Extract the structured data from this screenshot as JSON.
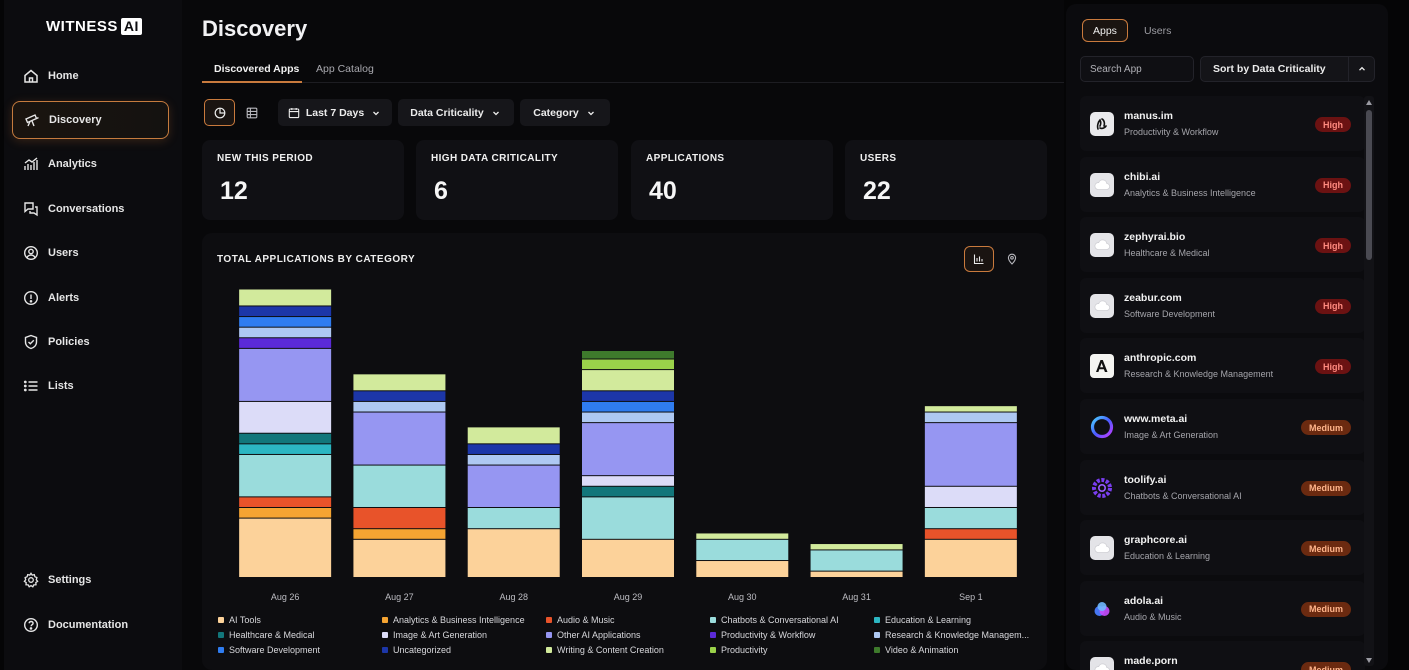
{
  "brand": {
    "name": "WITNESS",
    "mark": "AI"
  },
  "sidebar": {
    "items": [
      {
        "label": "Home",
        "icon": "home-icon"
      },
      {
        "label": "Discovery",
        "icon": "telescope-icon",
        "active": true
      },
      {
        "label": "Analytics",
        "icon": "analytics-icon"
      },
      {
        "label": "Conversations",
        "icon": "conversations-icon"
      },
      {
        "label": "Users",
        "icon": "user-circle-icon"
      },
      {
        "label": "Alerts",
        "icon": "alert-icon"
      },
      {
        "label": "Policies",
        "icon": "shield-icon"
      },
      {
        "label": "Lists",
        "icon": "list-icon"
      }
    ],
    "bottom_items": [
      {
        "label": "Settings",
        "icon": "gear-icon"
      },
      {
        "label": "Documentation",
        "icon": "help-icon"
      }
    ]
  },
  "main": {
    "title": "Discovery",
    "tabs": [
      {
        "label": "Discovered Apps",
        "active": true
      },
      {
        "label": "App Catalog"
      }
    ],
    "toolbar": {
      "view_chart_icon": "chart-view-icon",
      "view_table_icon": "table-view-icon",
      "date_range": "Last 7 Days",
      "filter_criticality": "Data Criticality",
      "filter_category": "Category"
    },
    "stats": [
      {
        "label": "NEW THIS PERIOD",
        "value": "12"
      },
      {
        "label": "HIGH DATA CRITICALITY",
        "value": "6"
      },
      {
        "label": "APPLICATIONS",
        "value": "40"
      },
      {
        "label": "USERS",
        "value": "22"
      }
    ]
  },
  "chart_data": {
    "type": "bar",
    "stacked": true,
    "title": "TOTAL APPLICATIONS BY CATEGORY",
    "categories": [
      "Aug 26",
      "Aug 27",
      "Aug 28",
      "Aug 29",
      "Aug 30",
      "Aug 31",
      "Sep 1"
    ],
    "series": [
      {
        "name": "AI Tools",
        "color": "#fcd29a",
        "values": [
          5.6,
          3.6,
          4.6,
          3.6,
          1.6,
          0.6,
          3.6
        ]
      },
      {
        "name": "Analytics & Business Intelligence",
        "color": "#f5a432",
        "values": [
          1,
          1,
          0,
          0,
          0,
          0,
          0
        ]
      },
      {
        "name": "Audio & Music",
        "color": "#e8532a",
        "values": [
          1,
          2,
          0,
          0,
          0,
          0,
          1
        ]
      },
      {
        "name": "Chatbots & Conversational AI",
        "color": "#9adcdc",
        "values": [
          4,
          4,
          2,
          4,
          2,
          2,
          2
        ]
      },
      {
        "name": "Education & Learning",
        "color": "#2cb6c2",
        "values": [
          1,
          0,
          0,
          0,
          0,
          0,
          0
        ]
      },
      {
        "name": "Healthcare & Medical",
        "color": "#12767a",
        "values": [
          1,
          0,
          0,
          1,
          0,
          0,
          0
        ]
      },
      {
        "name": "Image & Art Generation",
        "color": "#dcdcf8",
        "values": [
          3,
          0,
          0,
          1,
          0,
          0,
          2
        ]
      },
      {
        "name": "Other AI Applications",
        "color": "#9696f2",
        "values": [
          5,
          5,
          4,
          5,
          0,
          0,
          6
        ]
      },
      {
        "name": "Productivity & Workflow",
        "color": "#5b2ad8",
        "values": [
          1,
          0,
          0,
          0,
          0,
          0,
          0
        ]
      },
      {
        "name": "Research & Knowledge Managem...",
        "color": "#aec8f2",
        "values": [
          1,
          1,
          1,
          1,
          0,
          0,
          1
        ]
      },
      {
        "name": "Software Development",
        "color": "#2f7cf0",
        "values": [
          1,
          0,
          0,
          1,
          0,
          0,
          0
        ]
      },
      {
        "name": "Uncategorized",
        "color": "#1c36a8",
        "values": [
          1,
          1,
          1,
          1,
          0,
          0,
          0
        ]
      },
      {
        "name": "Writing & Content Creation",
        "color": "#d2ea9c",
        "values": [
          1.6,
          1.6,
          1.6,
          2,
          0.6,
          0.6,
          0.6
        ]
      },
      {
        "name": "Productivity",
        "color": "#9ad24a",
        "values": [
          0,
          0,
          0,
          1,
          0,
          0,
          0
        ]
      },
      {
        "name": "Video & Animation",
        "color": "#3e7a2c",
        "values": [
          0,
          0,
          0,
          0.8,
          0,
          0,
          0
        ]
      }
    ],
    "ylim": [
      0,
      28
    ],
    "grid": false,
    "legend_position": "bottom",
    "view_toggle_icons": [
      "bar-chart-icon",
      "map-pin-icon"
    ]
  },
  "panel": {
    "tabs": [
      {
        "label": "Apps",
        "active": true
      },
      {
        "label": "Users"
      }
    ],
    "search_placeholder": "Search App",
    "sort_label": "Sort by Data Criticality",
    "apps": [
      {
        "name": "manus.im",
        "category": "Productivity & Workflow",
        "criticality": "High",
        "icon": "manus-logo-icon"
      },
      {
        "name": "chibi.ai",
        "category": "Analytics & Business Intelligence",
        "criticality": "High",
        "icon": "cloud-icon"
      },
      {
        "name": "zephyrai.bio",
        "category": "Healthcare & Medical",
        "criticality": "High",
        "icon": "cloud-icon"
      },
      {
        "name": "zeabur.com",
        "category": "Software Development",
        "criticality": "High",
        "icon": "cloud-icon"
      },
      {
        "name": "anthropic.com",
        "category": "Research & Knowledge Management",
        "criticality": "High",
        "icon": "anthropic-logo-icon"
      },
      {
        "name": "www.meta.ai",
        "category": "Image & Art Generation",
        "criticality": "Medium",
        "icon": "meta-ai-logo-icon"
      },
      {
        "name": "toolify.ai",
        "category": "Chatbots & Conversational AI",
        "criticality": "Medium",
        "icon": "toolify-logo-icon"
      },
      {
        "name": "graphcore.ai",
        "category": "Education & Learning",
        "criticality": "Medium",
        "icon": "cloud-icon"
      },
      {
        "name": "adola.ai",
        "category": "Audio & Music",
        "criticality": "Medium",
        "icon": "adola-logo-icon"
      },
      {
        "name": "made.porn",
        "category": "",
        "criticality": "Medium",
        "icon": "cloud-icon"
      }
    ]
  }
}
